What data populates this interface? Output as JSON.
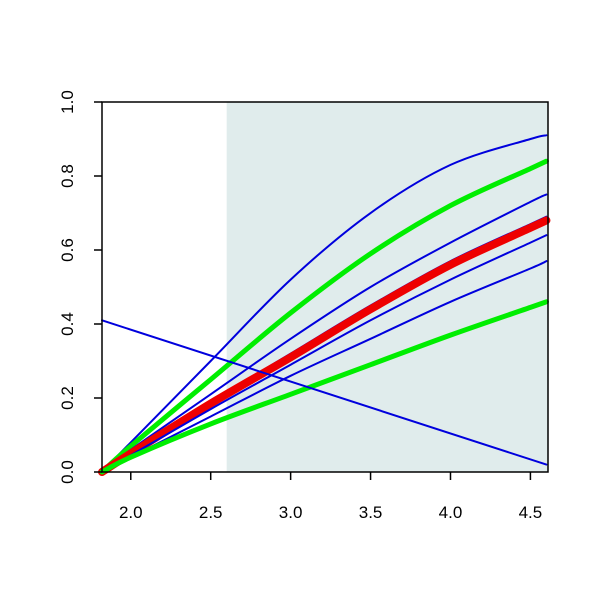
{
  "chart_data": {
    "type": "line",
    "title": "",
    "xlabel": "",
    "ylabel": "",
    "xlim": [
      1.82,
      4.61
    ],
    "ylim": [
      0,
      1
    ],
    "grid": false,
    "x_ticks": [
      2.0,
      2.5,
      3.0,
      3.5,
      4.0,
      4.5
    ],
    "x_tick_labels": [
      "2.0",
      "2.5",
      "3.0",
      "3.5",
      "4.0",
      "4.5"
    ],
    "y_ticks": [
      0.0,
      0.2,
      0.4,
      0.6,
      0.8,
      1.0
    ],
    "y_tick_labels": [
      "0.0",
      "0.2",
      "0.4",
      "0.6",
      "0.8",
      "1.0"
    ],
    "shaded_region": {
      "x": [
        2.6,
        4.61
      ],
      "color": "#e0ecec"
    },
    "series": [
      {
        "color": "#0000dd",
        "weight": "thin",
        "x": [
          1.82,
          2.0,
          2.5,
          3.0,
          3.5,
          4.0,
          4.5,
          4.6
        ],
        "y": [
          0.0,
          0.08,
          0.3,
          0.52,
          0.7,
          0.83,
          0.9,
          0.91
        ]
      },
      {
        "color": "#00ee00",
        "weight": "thick",
        "x": [
          1.82,
          2.0,
          2.5,
          3.0,
          3.5,
          4.0,
          4.5,
          4.6
        ],
        "y": [
          0.0,
          0.07,
          0.25,
          0.43,
          0.59,
          0.72,
          0.82,
          0.84
        ]
      },
      {
        "color": "#0000dd",
        "weight": "thin",
        "x": [
          1.82,
          2.0,
          2.5,
          3.0,
          3.5,
          4.0,
          4.5,
          4.6
        ],
        "y": [
          0.0,
          0.06,
          0.21,
          0.36,
          0.5,
          0.62,
          0.73,
          0.75
        ]
      },
      {
        "color": "#0000dd",
        "weight": "thin",
        "x": [
          1.82,
          2.0,
          2.5,
          3.0,
          3.5,
          4.0,
          4.5,
          4.6
        ],
        "y": [
          0.0,
          0.055,
          0.19,
          0.32,
          0.45,
          0.57,
          0.67,
          0.69
        ]
      },
      {
        "color": "#ee0000",
        "weight": "extra-thick",
        "x": [
          1.82,
          2.0,
          2.5,
          3.0,
          3.5,
          4.0,
          4.5,
          4.6
        ],
        "y": [
          0.0,
          0.05,
          0.185,
          0.31,
          0.44,
          0.56,
          0.66,
          0.68
        ]
      },
      {
        "color": "#0000dd",
        "weight": "thin",
        "x": [
          1.82,
          2.0,
          2.5,
          3.0,
          3.5,
          4.0,
          4.5,
          4.6
        ],
        "y": [
          0.0,
          0.045,
          0.17,
          0.29,
          0.41,
          0.52,
          0.62,
          0.64
        ]
      },
      {
        "color": "#0000dd",
        "weight": "thin",
        "x": [
          1.82,
          2.0,
          2.5,
          3.0,
          3.5,
          4.0,
          4.5,
          4.6
        ],
        "y": [
          0.0,
          0.04,
          0.15,
          0.26,
          0.36,
          0.46,
          0.55,
          0.57
        ]
      },
      {
        "color": "#00ee00",
        "weight": "thick",
        "x": [
          1.82,
          2.0,
          2.5,
          3.0,
          3.5,
          4.0,
          4.5,
          4.6
        ],
        "y": [
          0.0,
          0.04,
          0.13,
          0.21,
          0.29,
          0.37,
          0.445,
          0.46
        ]
      },
      {
        "color": "#0000dd",
        "weight": "thin",
        "x": [
          1.82,
          4.6
        ],
        "y": [
          0.41,
          0.02
        ]
      }
    ]
  }
}
